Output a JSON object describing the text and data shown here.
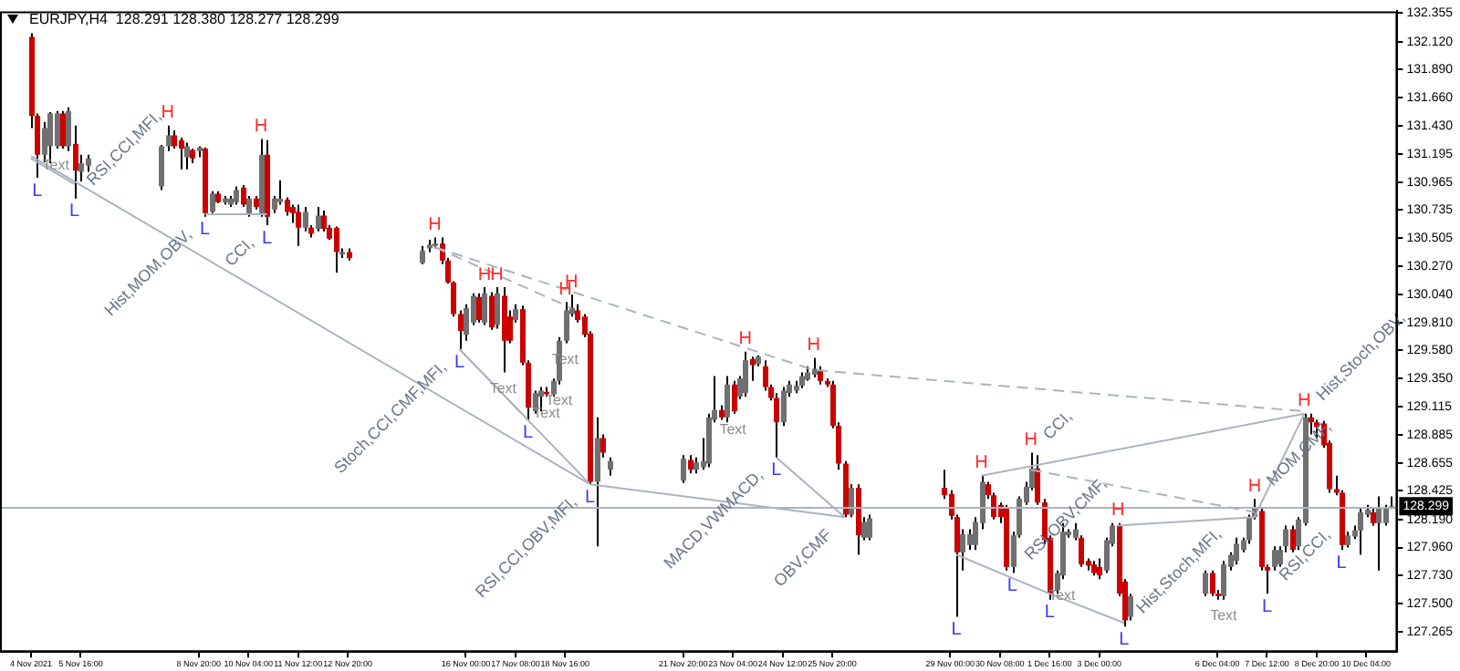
{
  "chart_data": {
    "type": "candlestick",
    "title": "EURJPY,H4  128.291 128.380 128.277 128.299",
    "x": [
      "2021-11-04T08:00",
      "2021-11-04T12:00",
      "2021-11-04T16:00",
      "2021-11-04T20:00",
      "2021-11-05T00:00",
      "2021-11-05T04:00",
      "2021-11-05T08:00",
      "2021-11-05T12:00",
      "2021-11-05T16:00",
      "2021-11-05T20:00",
      "2021-11-07T20:00",
      "2021-11-08T00:00",
      "2021-11-08T04:00",
      "2021-11-08T08:00",
      "2021-11-08T12:00",
      "2021-11-08T16:00",
      "2021-11-08T20:00",
      "2021-11-09T00:00",
      "2021-11-09T04:00",
      "2021-11-09T08:00",
      "2021-11-09T12:00",
      "2021-11-09T16:00",
      "2021-11-09T20:00",
      "2021-11-10T00:00",
      "2021-11-10T04:00",
      "2021-11-10T08:00",
      "2021-11-10T12:00",
      "2021-11-10T16:00",
      "2021-11-10T20:00",
      "2021-11-11T00:00",
      "2021-11-11T04:00",
      "2021-11-11T08:00",
      "2021-11-11T12:00",
      "2021-11-11T16:00",
      "2021-11-11T20:00",
      "2021-11-12T00:00",
      "2021-11-12T04:00",
      "2021-11-12T08:00",
      "2021-11-12T12:00",
      "2021-11-12T16:00",
      "2021-11-12T20:00",
      "2021-11-14T20:00",
      "2021-11-15T00:00",
      "2021-11-15T04:00",
      "2021-11-15T08:00",
      "2021-11-15T12:00",
      "2021-11-15T16:00",
      "2021-11-15T20:00",
      "2021-11-16T00:00",
      "2021-11-16T04:00",
      "2021-11-16T08:00",
      "2021-11-16T12:00",
      "2021-11-16T16:00",
      "2021-11-16T20:00",
      "2021-11-17T00:00",
      "2021-11-17T04:00",
      "2021-11-17T08:00",
      "2021-11-17T12:00",
      "2021-11-17T16:00",
      "2021-11-17T20:00",
      "2021-11-18T00:00",
      "2021-11-18T04:00",
      "2021-11-18T08:00",
      "2021-11-18T12:00",
      "2021-11-18T16:00",
      "2021-11-18T20:00",
      "2021-11-19T00:00",
      "2021-11-19T04:00",
      "2021-11-19T08:00",
      "2021-11-19T12:00",
      "2021-11-19T16:00",
      "2021-11-19T20:00",
      "2021-11-21T20:00",
      "2021-11-22T00:00",
      "2021-11-22T04:00",
      "2021-11-22T08:00",
      "2021-11-22T12:00",
      "2021-11-22T16:00",
      "2021-11-22T20:00",
      "2021-11-23T00:00",
      "2021-11-23T04:00",
      "2021-11-23T08:00",
      "2021-11-23T12:00",
      "2021-11-23T16:00",
      "2021-11-23T20:00",
      "2021-11-24T00:00",
      "2021-11-24T04:00",
      "2021-11-24T08:00",
      "2021-11-24T12:00",
      "2021-11-24T16:00",
      "2021-11-24T20:00",
      "2021-11-25T00:00",
      "2021-11-25T04:00",
      "2021-11-25T08:00",
      "2021-11-25T12:00",
      "2021-11-25T16:00",
      "2021-11-25T20:00",
      "2021-11-26T00:00",
      "2021-11-26T04:00",
      "2021-11-26T08:00",
      "2021-11-26T12:00",
      "2021-11-26T16:00",
      "2021-11-26T20:00",
      "2021-11-28T20:00",
      "2021-11-29T00:00",
      "2021-11-29T04:00",
      "2021-11-29T08:00",
      "2021-11-29T12:00",
      "2021-11-29T16:00",
      "2021-11-29T20:00",
      "2021-11-30T00:00",
      "2021-11-30T04:00",
      "2021-11-30T08:00",
      "2021-11-30T12:00",
      "2021-11-30T16:00",
      "2021-11-30T20:00",
      "2021-12-01T00:00",
      "2021-12-01T04:00",
      "2021-12-01T08:00",
      "2021-12-01T12:00",
      "2021-12-01T16:00",
      "2021-12-01T20:00",
      "2021-12-02T00:00",
      "2021-12-02T04:00",
      "2021-12-02T08:00",
      "2021-12-02T12:00",
      "2021-12-02T16:00",
      "2021-12-02T20:00",
      "2021-12-03T00:00",
      "2021-12-03T04:00",
      "2021-12-03T08:00",
      "2021-12-03T12:00",
      "2021-12-03T16:00",
      "2021-12-03T20:00",
      "2021-12-05T20:00",
      "2021-12-06T00:00",
      "2021-12-06T04:00",
      "2021-12-06T08:00",
      "2021-12-06T12:00",
      "2021-12-06T16:00",
      "2021-12-06T20:00",
      "2021-12-07T00:00",
      "2021-12-07T04:00",
      "2021-12-07T08:00",
      "2021-12-07T12:00",
      "2021-12-07T16:00",
      "2021-12-07T20:00",
      "2021-12-08T00:00",
      "2021-12-08T04:00",
      "2021-12-08T08:00",
      "2021-12-08T12:00",
      "2021-12-08T16:00",
      "2021-12-08T20:00",
      "2021-12-09T00:00",
      "2021-12-09T04:00",
      "2021-12-09T08:00",
      "2021-12-09T12:00",
      "2021-12-09T16:00",
      "2021-12-09T20:00",
      "2021-12-10T00:00",
      "2021-12-10T04:00",
      "2021-12-10T08:00",
      "2021-12-10T12:00",
      "2021-12-10T16:00",
      "2021-12-10T20:00"
    ],
    "ohlc": [
      [
        132.16,
        132.19,
        131.41,
        131.51
      ],
      [
        131.51,
        131.53,
        131.0,
        131.19
      ],
      [
        131.19,
        131.46,
        131.13,
        131.41
      ],
      [
        131.26,
        131.54,
        131.12,
        131.53
      ],
      [
        131.26,
        131.55,
        131.24,
        131.53
      ],
      [
        131.53,
        131.55,
        131.24,
        131.26
      ],
      [
        131.26,
        131.58,
        131.22,
        131.55
      ],
      [
        131.28,
        131.43,
        130.83,
        131.06
      ],
      [
        131.05,
        131.19,
        130.97,
        131.12
      ],
      [
        131.1,
        131.19,
        131.05,
        131.16
      ],
      [
        130.93,
        131.27,
        130.9,
        131.26
      ],
      [
        131.26,
        131.43,
        131.22,
        131.35
      ],
      [
        131.35,
        131.39,
        131.24,
        131.26
      ],
      [
        131.31,
        131.33,
        131.07,
        131.24
      ],
      [
        131.17,
        131.29,
        131.07,
        131.26
      ],
      [
        131.23,
        131.24,
        131.12,
        131.16
      ],
      [
        131.22,
        131.26,
        131.17,
        131.25
      ],
      [
        131.24,
        131.25,
        130.68,
        130.71
      ],
      [
        130.72,
        130.89,
        130.71,
        130.87
      ],
      [
        130.87,
        130.89,
        130.79,
        130.8
      ],
      [
        130.8,
        130.85,
        130.78,
        130.83
      ],
      [
        130.78,
        130.85,
        130.76,
        130.83
      ],
      [
        130.8,
        130.93,
        130.78,
        130.9
      ],
      [
        130.92,
        130.94,
        130.76,
        130.78
      ],
      [
        130.71,
        130.85,
        130.68,
        130.83
      ],
      [
        130.83,
        130.85,
        130.74,
        130.76
      ],
      [
        130.71,
        131.32,
        130.68,
        131.19
      ],
      [
        131.19,
        131.31,
        130.61,
        130.68
      ],
      [
        130.74,
        130.85,
        130.71,
        130.83
      ],
      [
        130.8,
        130.98,
        130.78,
        130.83
      ],
      [
        130.82,
        130.84,
        130.69,
        130.72
      ],
      [
        130.76,
        130.78,
        130.63,
        130.71
      ],
      [
        130.72,
        130.78,
        130.44,
        130.59
      ],
      [
        130.59,
        130.76,
        130.56,
        130.72
      ],
      [
        130.59,
        130.61,
        130.51,
        130.54
      ],
      [
        130.58,
        130.76,
        130.56,
        130.69
      ],
      [
        130.69,
        130.73,
        130.56,
        130.58
      ],
      [
        130.59,
        130.61,
        130.49,
        130.5
      ],
      [
        130.59,
        130.6,
        130.22,
        130.39
      ],
      [
        130.37,
        130.42,
        130.34,
        130.39
      ],
      [
        130.39,
        130.42,
        130.32,
        130.34
      ],
      [
        130.3,
        130.44,
        130.29,
        130.4
      ],
      [
        130.42,
        130.49,
        130.39,
        130.45
      ],
      [
        130.44,
        130.51,
        130.42,
        130.46
      ],
      [
        130.46,
        130.51,
        130.29,
        130.32
      ],
      [
        130.32,
        130.34,
        130.13,
        130.14
      ],
      [
        130.14,
        130.15,
        129.86,
        129.88
      ],
      [
        129.88,
        129.91,
        129.59,
        129.74
      ],
      [
        129.71,
        129.96,
        129.66,
        129.93
      ],
      [
        129.81,
        130.05,
        129.79,
        130.03
      ],
      [
        130.02,
        130.05,
        129.81,
        129.83
      ],
      [
        129.81,
        130.1,
        129.79,
        130.05
      ],
      [
        130.03,
        130.06,
        129.75,
        129.77
      ],
      [
        129.79,
        130.1,
        129.76,
        130.05
      ],
      [
        130.03,
        130.1,
        129.4,
        129.66
      ],
      [
        129.86,
        129.91,
        129.64,
        129.66
      ],
      [
        129.83,
        129.96,
        129.81,
        129.92
      ],
      [
        129.92,
        129.95,
        129.46,
        129.48
      ],
      [
        129.48,
        129.5,
        129.01,
        129.11
      ],
      [
        129.08,
        129.25,
        129.06,
        129.23
      ],
      [
        129.2,
        129.28,
        129.08,
        129.25
      ],
      [
        129.24,
        129.28,
        129.2,
        129.22
      ],
      [
        129.22,
        129.35,
        129.2,
        129.33
      ],
      [
        129.33,
        129.69,
        129.3,
        129.66
      ],
      [
        129.66,
        129.98,
        129.64,
        129.91
      ],
      [
        129.88,
        130.04,
        129.86,
        129.93
      ],
      [
        129.91,
        129.96,
        129.81,
        129.83
      ],
      [
        129.86,
        129.88,
        129.69,
        129.71
      ],
      [
        129.72,
        129.74,
        128.48,
        128.5
      ],
      [
        128.5,
        129.03,
        127.97,
        128.86
      ],
      [
        128.86,
        128.89,
        128.7,
        128.74
      ],
      [
        128.6,
        128.7,
        128.55,
        128.67
      ],
      [
        128.51,
        128.72,
        128.49,
        128.69
      ],
      [
        128.68,
        128.72,
        128.57,
        128.6
      ],
      [
        128.6,
        128.7,
        128.57,
        128.66
      ],
      [
        128.62,
        128.86,
        128.6,
        128.67
      ],
      [
        128.65,
        129.06,
        128.62,
        129.03
      ],
      [
        129.01,
        129.37,
        128.99,
        129.09
      ],
      [
        129.09,
        129.13,
        129.01,
        129.03
      ],
      [
        129.03,
        129.37,
        128.99,
        129.3
      ],
      [
        129.3,
        129.33,
        129.06,
        129.08
      ],
      [
        129.2,
        129.37,
        129.18,
        129.35
      ],
      [
        129.23,
        129.57,
        129.2,
        129.5
      ],
      [
        129.51,
        129.53,
        129.33,
        129.46
      ],
      [
        129.47,
        129.54,
        129.45,
        129.53
      ],
      [
        129.45,
        129.5,
        129.25,
        129.28
      ],
      [
        129.28,
        129.3,
        129.17,
        129.19
      ],
      [
        129.19,
        129.23,
        128.7,
        128.99
      ],
      [
        128.99,
        129.28,
        128.96,
        129.25
      ],
      [
        129.23,
        129.33,
        129.2,
        129.3
      ],
      [
        129.25,
        129.33,
        129.23,
        129.29
      ],
      [
        129.29,
        129.4,
        129.27,
        129.37
      ],
      [
        129.34,
        129.45,
        129.33,
        129.4
      ],
      [
        129.38,
        129.52,
        129.36,
        129.43
      ],
      [
        129.42,
        129.45,
        129.3,
        129.33
      ],
      [
        129.33,
        129.35,
        129.28,
        129.3
      ],
      [
        129.3,
        129.33,
        128.94,
        128.96
      ],
      [
        128.96,
        128.99,
        128.6,
        128.65
      ],
      [
        128.65,
        128.67,
        128.21,
        128.23
      ],
      [
        128.23,
        128.48,
        128.21,
        128.45
      ],
      [
        128.45,
        128.48,
        127.9,
        128.06
      ],
      [
        128.04,
        128.21,
        128.02,
        128.17
      ],
      [
        128.04,
        128.23,
        128.02,
        128.2
      ],
      [
        128.45,
        128.6,
        128.36,
        128.39
      ],
      [
        128.4,
        128.43,
        128.19,
        128.22
      ],
      [
        128.21,
        128.23,
        127.39,
        127.92
      ],
      [
        127.92,
        128.11,
        127.77,
        128.07
      ],
      [
        127.98,
        128.11,
        127.94,
        128.07
      ],
      [
        127.98,
        128.21,
        127.94,
        128.17
      ],
      [
        128.16,
        128.55,
        128.11,
        128.5
      ],
      [
        128.48,
        128.5,
        128.36,
        128.39
      ],
      [
        128.39,
        128.41,
        128.19,
        128.21
      ],
      [
        128.31,
        128.33,
        128.16,
        128.21
      ],
      [
        128.28,
        128.31,
        127.77,
        127.8
      ],
      [
        127.8,
        128.09,
        127.75,
        128.06
      ],
      [
        128.06,
        128.38,
        128.04,
        128.36
      ],
      [
        128.33,
        128.5,
        128.31,
        128.46
      ],
      [
        128.45,
        128.74,
        128.43,
        128.61
      ],
      [
        128.61,
        128.72,
        128.31,
        128.33
      ],
      [
        128.33,
        128.36,
        127.99,
        128.02
      ],
      [
        128.04,
        128.06,
        127.53,
        127.58
      ],
      [
        127.61,
        127.77,
        127.58,
        127.75
      ],
      [
        127.73,
        128.16,
        127.7,
        128.09
      ],
      [
        128.06,
        128.11,
        128.04,
        128.09
      ],
      [
        128.04,
        128.16,
        128.02,
        128.11
      ],
      [
        128.04,
        128.06,
        127.8,
        127.82
      ],
      [
        127.85,
        127.87,
        127.77,
        127.81
      ],
      [
        127.82,
        127.85,
        127.73,
        127.75
      ],
      [
        127.8,
        127.87,
        127.7,
        127.73
      ],
      [
        127.77,
        128.04,
        127.75,
        128.02
      ],
      [
        127.99,
        128.16,
        127.97,
        128.14
      ],
      [
        128.14,
        128.16,
        127.56,
        127.58
      ],
      [
        127.68,
        127.7,
        127.31,
        127.36
      ],
      [
        127.39,
        127.58,
        127.36,
        127.56
      ],
      [
        127.58,
        127.77,
        127.56,
        127.75
      ],
      [
        127.75,
        127.77,
        127.56,
        127.58
      ],
      [
        127.58,
        127.61,
        127.53,
        127.56
      ],
      [
        127.56,
        127.85,
        127.53,
        127.82
      ],
      [
        127.8,
        127.92,
        127.77,
        127.9
      ],
      [
        127.85,
        128.04,
        127.82,
        127.99
      ],
      [
        127.94,
        128.04,
        127.92,
        128.02
      ],
      [
        128.02,
        128.23,
        127.99,
        128.21
      ],
      [
        128.21,
        128.36,
        128.19,
        128.28
      ],
      [
        128.26,
        128.28,
        127.77,
        127.8
      ],
      [
        127.8,
        127.82,
        127.58,
        127.77
      ],
      [
        127.8,
        127.97,
        127.77,
        127.94
      ],
      [
        127.82,
        127.97,
        127.8,
        127.94
      ],
      [
        127.97,
        128.14,
        127.92,
        128.11
      ],
      [
        128.11,
        128.14,
        127.92,
        127.94
      ],
      [
        127.97,
        128.21,
        127.94,
        128.19
      ],
      [
        128.16,
        129.06,
        128.14,
        129.03
      ],
      [
        129.03,
        129.06,
        128.89,
        128.99
      ],
      [
        128.99,
        129.01,
        128.86,
        128.95
      ],
      [
        128.98,
        129.0,
        128.78,
        128.8
      ],
      [
        128.82,
        128.84,
        128.41,
        128.44
      ],
      [
        128.44,
        128.55,
        128.39,
        128.41
      ],
      [
        128.41,
        128.43,
        127.94,
        127.98
      ],
      [
        127.98,
        128.09,
        127.96,
        128.06
      ],
      [
        128.05,
        128.14,
        128.03,
        128.1
      ],
      [
        128.1,
        128.28,
        127.9,
        128.25
      ],
      [
        128.23,
        128.31,
        128.21,
        128.27
      ],
      [
        128.25,
        128.28,
        128.14,
        128.16
      ],
      [
        128.16,
        128.38,
        127.77,
        128.28
      ],
      [
        128.16,
        128.31,
        128.14,
        128.28
      ],
      [
        128.291,
        128.38,
        128.277,
        128.299
      ]
    ],
    "colors": [
      "#cc0000",
      "#cc0000",
      "#707070",
      "#707070",
      "#707070",
      "#cc0000",
      "#707070",
      "#cc0000",
      "#707070",
      "#707070",
      "#707070",
      "#707070",
      "#cc0000",
      "#cc0000",
      "#707070",
      "#cc0000",
      "#707070",
      "#cc0000",
      "#707070",
      "#cc0000",
      "#707070",
      "#707070",
      "#707070",
      "#cc0000",
      "#707070",
      "#cc0000",
      "#707070",
      "#cc0000",
      "#707070",
      "#707070",
      "#cc0000",
      "#cc0000",
      "#cc0000",
      "#707070",
      "#cc0000",
      "#707070",
      "#cc0000",
      "#cc0000",
      "#cc0000",
      "#707070",
      "#cc0000",
      "#707070",
      "#707070",
      "#707070",
      "#cc0000",
      "#cc0000",
      "#cc0000",
      "#cc0000",
      "#707070",
      "#707070",
      "#cc0000",
      "#707070",
      "#cc0000",
      "#707070",
      "#cc0000",
      "#cc0000",
      "#707070",
      "#cc0000",
      "#cc0000",
      "#707070",
      "#707070",
      "#cc0000",
      "#707070",
      "#707070",
      "#707070",
      "#707070",
      "#cc0000",
      "#cc0000",
      "#cc0000",
      "#707070",
      "#cc0000",
      "#707070",
      "#707070",
      "#cc0000",
      "#707070",
      "#707070",
      "#707070",
      "#707070",
      "#cc0000",
      "#707070",
      "#cc0000",
      "#707070",
      "#707070",
      "#cc0000",
      "#707070",
      "#cc0000",
      "#cc0000",
      "#cc0000",
      "#707070",
      "#707070",
      "#707070",
      "#707070",
      "#707070",
      "#707070",
      "#cc0000",
      "#cc0000",
      "#cc0000",
      "#cc0000",
      "#cc0000",
      "#707070",
      "#cc0000",
      "#707070",
      "#707070",
      "#cc0000",
      "#cc0000",
      "#cc0000",
      "#707070",
      "#707070",
      "#707070",
      "#707070",
      "#cc0000",
      "#cc0000",
      "#cc0000",
      "#cc0000",
      "#707070",
      "#707070",
      "#707070",
      "#707070",
      "#cc0000",
      "#cc0000",
      "#cc0000",
      "#707070",
      "#707070",
      "#707070",
      "#707070",
      "#cc0000",
      "#cc0000",
      "#cc0000",
      "#cc0000",
      "#707070",
      "#707070",
      "#cc0000",
      "#cc0000",
      "#707070",
      "#707070",
      "#cc0000",
      "#cc0000",
      "#707070",
      "#707070",
      "#707070",
      "#707070",
      "#707070",
      "#707070",
      "#cc0000",
      "#cc0000",
      "#707070",
      "#707070",
      "#707070",
      "#cc0000",
      "#707070",
      "#707070",
      "#cc0000",
      "#cc0000",
      "#cc0000",
      "#cc0000",
      "#cc0000",
      "#cc0000",
      "#707070",
      "#707070",
      "#707070",
      "#707070",
      "#cc0000",
      "#707070",
      "#707070",
      "#707070"
    ],
    "series": [
      {
        "type": "line",
        "color": "#aab3c2",
        "line_style": "solid",
        "x": [
          "2021-11-04T08:00",
          "2021-11-19T08:00",
          "2021-11-26T04:00"
        ],
        "values": [
          131.18,
          128.48,
          128.21
        ]
      },
      {
        "type": "line",
        "color": "#aab3c2",
        "line_style": "solid",
        "x": [
          "2021-11-04T08:00",
          "2021-11-05T12:00"
        ],
        "values": [
          131.16,
          130.95
        ]
      },
      {
        "type": "line",
        "color": "#aab3c2",
        "line_style": "solid",
        "x": [
          "2021-11-09T00:00",
          "2021-11-10T16:00"
        ],
        "values": [
          130.7,
          130.7
        ]
      },
      {
        "type": "line",
        "color": "#aab3c2",
        "line_style": "solid",
        "x": [
          "2021-11-15T20:00",
          "2021-11-19T08:00"
        ],
        "values": [
          129.59,
          128.48
        ]
      },
      {
        "type": "line",
        "color": "#aab3c2",
        "line_style": "solid",
        "x": [
          "2021-11-15T20:00",
          "2021-11-17T16:00"
        ],
        "values": [
          129.59,
          129.01
        ]
      },
      {
        "type": "line",
        "color": "#aab3c2",
        "line_style": "solid",
        "x": [
          "2021-11-24T08:00",
          "2021-11-26T04:00"
        ],
        "values": [
          128.7,
          128.21
        ]
      },
      {
        "type": "line",
        "color": "#aab3c2",
        "line_style": "solid",
        "x": [
          "2021-11-29T04:00",
          "2021-12-01T16:00",
          "2021-12-03T16:00"
        ],
        "values": [
          127.9,
          127.58,
          127.34
        ]
      },
      {
        "type": "line",
        "color": "#aab3c2",
        "line_style": "solid",
        "x": [
          "2021-11-29T20:00",
          "2021-12-08T12:00"
        ],
        "values": [
          128.55,
          129.06
        ]
      },
      {
        "type": "line",
        "color": "#aab3c2",
        "line_style": "solid",
        "x": [
          "2021-12-03T12:00",
          "2021-12-07T04:00",
          "2021-12-08T12:00"
        ],
        "values": [
          128.14,
          128.21,
          129.06
        ]
      },
      {
        "type": "line",
        "color": "#aab3c2",
        "line_style": "dashed",
        "x": [
          "2021-11-15T04:00",
          "2021-11-25T08:00",
          "2021-12-08T12:00"
        ],
        "values": [
          130.43,
          129.42,
          129.08
        ]
      },
      {
        "type": "line",
        "color": "#aab3c2",
        "line_style": "dashed",
        "x": [
          "2021-11-15T04:00",
          "2021-11-18T20:00"
        ],
        "values": [
          130.43,
          129.93
        ]
      },
      {
        "type": "line",
        "color": "#aab3c2",
        "line_style": "dashed",
        "x": [
          "2021-12-01T04:00",
          "2021-12-07T04:00"
        ],
        "values": [
          128.6,
          128.25
        ]
      }
    ],
    "xlim": [
      "2021-11-03T12:00",
      "2021-12-11T00:00"
    ],
    "ylim": [
      127.1,
      132.37
    ],
    "yticks": [
      {
        "value": 132.355,
        "label": "132.355"
      },
      {
        "value": 132.12,
        "label": "132.120"
      },
      {
        "value": 131.89,
        "label": "131.890"
      },
      {
        "value": 131.66,
        "label": "131.660"
      },
      {
        "value": 131.43,
        "label": "131.430"
      },
      {
        "value": 131.195,
        "label": "131.195"
      },
      {
        "value": 130.965,
        "label": "130.965"
      },
      {
        "value": 130.735,
        "label": "130.735"
      },
      {
        "value": 130.505,
        "label": "130.505"
      },
      {
        "value": 130.27,
        "label": "130.270"
      },
      {
        "value": 130.04,
        "label": "130.040"
      },
      {
        "value": 129.81,
        "label": "129.810"
      },
      {
        "value": 129.58,
        "label": "129.580"
      },
      {
        "value": 129.35,
        "label": "129.350"
      },
      {
        "value": 129.115,
        "label": "129.115"
      },
      {
        "value": 128.885,
        "label": "128.885"
      },
      {
        "value": 128.655,
        "label": "128.655"
      },
      {
        "value": 128.425,
        "label": "128.425"
      },
      {
        "value": 128.19,
        "label": "128.190"
      },
      {
        "value": 127.96,
        "label": "127.960"
      },
      {
        "value": 127.73,
        "label": "127.730"
      },
      {
        "value": 127.5,
        "label": "127.500"
      },
      {
        "value": 127.265,
        "label": "127.265"
      }
    ],
    "xticks": [
      {
        "value": "2021-11-04T08:00",
        "label": "4 Nov 2021"
      },
      {
        "value": "2021-11-05T16:00",
        "label": "5 Nov 16:00"
      },
      {
        "value": "2021-11-08T20:00",
        "label": "8 Nov 20:00"
      },
      {
        "value": "2021-11-10T04:00",
        "label": "10 Nov 04:00"
      },
      {
        "value": "2021-11-11T12:00",
        "label": "11 Nov 12:00"
      },
      {
        "value": "2021-11-12T20:00",
        "label": "12 Nov 20:00"
      },
      {
        "value": "2021-11-16T00:00",
        "label": "16 Nov 00:00"
      },
      {
        "value": "2021-11-17T08:00",
        "label": "17 Nov 08:00"
      },
      {
        "value": "2021-11-18T16:00",
        "label": "18 Nov 16:00"
      },
      {
        "value": "2021-11-21T20:00",
        "label": "21 Nov 20:00"
      },
      {
        "value": "2021-11-23T04:00",
        "label": "23 Nov 04:00"
      },
      {
        "value": "2021-11-24T12:00",
        "label": "24 Nov 12:00"
      },
      {
        "value": "2021-11-25T20:00",
        "label": "25 Nov 20:00"
      },
      {
        "value": "2021-11-29T00:00",
        "label": "29 Nov 00:00"
      },
      {
        "value": "2021-11-30T08:00",
        "label": "30 Nov 08:00"
      },
      {
        "value": "2021-12-01T16:00",
        "label": "1 Dec 16:00"
      },
      {
        "value": "2021-12-03T00:00",
        "label": "3 Dec 00:00"
      },
      {
        "value": "2021-12-06T04:00",
        "label": "6 Dec 04:00"
      },
      {
        "value": "2021-12-07T12:00",
        "label": "7 Dec 12:00"
      },
      {
        "value": "2021-12-08T20:00",
        "label": "8 Dec 20:00"
      },
      {
        "value": "2021-12-10T04:00",
        "label": "10 Dec 04:00"
      }
    ],
    "ref_lines": [
      {
        "axis": "y",
        "value": 128.299,
        "label": "128.299",
        "color": "#aab3c2"
      }
    ],
    "annotations": [
      {
        "text": "H",
        "x": "2021-11-08T00:00",
        "y": 131.43
      },
      {
        "text": "H",
        "x": "2021-11-10T12:00",
        "y": 131.32
      },
      {
        "text": "H",
        "x": "2021-11-15T04:00",
        "y": 130.51
      },
      {
        "text": "H",
        "x": "2021-11-16T12:00",
        "y": 130.1
      },
      {
        "text": "H",
        "x": "2021-11-16T20:00",
        "y": 130.1
      },
      {
        "text": "H",
        "x": "2021-11-18T16:00",
        "y": 129.98
      },
      {
        "text": "H",
        "x": "2021-11-18T20:00",
        "y": 130.04
      },
      {
        "text": "H",
        "x": "2021-11-23T12:00",
        "y": 129.57
      },
      {
        "text": "H",
        "x": "2021-11-25T08:00",
        "y": 129.52
      },
      {
        "text": "H",
        "x": "2021-11-29T20:00",
        "y": 128.55
      },
      {
        "text": "H",
        "x": "2021-12-01T04:00",
        "y": 128.74
      },
      {
        "text": "H",
        "x": "2021-12-03T12:00",
        "y": 128.16
      },
      {
        "text": "H",
        "x": "2021-12-07T04:00",
        "y": 128.36
      },
      {
        "text": "H",
        "x": "2021-12-08T12:00",
        "y": 129.06
      },
      {
        "text": "L",
        "x": "2021-11-04T12:00",
        "y": 131.0
      },
      {
        "text": "L",
        "x": "2021-11-05T12:00",
        "y": 130.83
      },
      {
        "text": "L",
        "x": "2021-11-09T00:00",
        "y": 130.68
      },
      {
        "text": "L",
        "x": "2021-11-10T16:00",
        "y": 130.61
      },
      {
        "text": "L",
        "x": "2021-11-15T20:00",
        "y": 129.59
      },
      {
        "text": "L",
        "x": "2021-11-17T16:00",
        "y": 129.01
      },
      {
        "text": "L",
        "x": "2021-11-19T08:00",
        "y": 128.48
      },
      {
        "text": "L",
        "x": "2021-11-24T08:00",
        "y": 128.7
      },
      {
        "text": "L",
        "x": "2021-11-29T04:00",
        "y": 127.39
      },
      {
        "text": "L",
        "x": "2021-11-30T16:00",
        "y": 127.75
      },
      {
        "text": "L",
        "x": "2021-12-01T16:00",
        "y": 127.53
      },
      {
        "text": "L",
        "x": "2021-12-03T16:00",
        "y": 127.31
      },
      {
        "text": "L",
        "x": "2021-12-07T12:00",
        "y": 127.58
      },
      {
        "text": "L",
        "x": "2021-12-09T12:00",
        "y": 127.94
      },
      {
        "text": "Text",
        "x": "2021-11-05T00:00",
        "y": 131.24
      },
      {
        "text": "Text",
        "x": "2021-11-17T00:00",
        "y": 129.4
      },
      {
        "text": "Text",
        "x": "2021-11-18T04:00",
        "y": 129.2
      },
      {
        "text": "Text",
        "x": "2021-11-18T12:00",
        "y": 129.3
      },
      {
        "text": "Text",
        "x": "2021-11-18T16:00",
        "y": 129.64
      },
      {
        "text": "Text",
        "x": "2021-11-23T04:00",
        "y": 129.06
      },
      {
        "text": "Text",
        "x": "2021-12-02T00:00",
        "y": 127.7
      },
      {
        "text": "Text",
        "x": "2021-12-06T08:00",
        "y": 127.53
      },
      {
        "text": "RSI,CCI,MFI,",
        "x": "2021-11-05T12:00",
        "y": 130.83
      },
      {
        "text": "Hist,MOM,OBV,",
        "x": "2021-11-09T00:00",
        "y": 130.68
      },
      {
        "text": "CCI,",
        "x": "2021-11-10T16:00",
        "y": 130.61
      },
      {
        "text": "Stoch,CCI,CMF,MFI,",
        "x": "2021-11-15T20:00",
        "y": 129.59
      },
      {
        "text": "RSI,CCI,OBV,MFI,",
        "x": "2021-11-19T08:00",
        "y": 128.48
      },
      {
        "text": "MACD,VWMACD,",
        "x": "2021-11-24T08:00",
        "y": 128.7
      },
      {
        "text": "OBV,CMF",
        "x": "2021-11-26T04:00",
        "y": 128.21
      },
      {
        "text": "RSI,OBV,CMF,",
        "x": "2021-11-30T16:00",
        "y": 127.75
      },
      {
        "text": "CCI,",
        "x": "2021-12-01T04:00",
        "y": 128.74
      },
      {
        "text": "Hist,Stoch,MFI,",
        "x": "2021-12-03T16:00",
        "y": 127.31
      },
      {
        "text": "MOM,CMF,",
        "x": "2021-12-07T04:00",
        "y": 128.36
      },
      {
        "text": "RSI,CCI,",
        "x": "2021-12-07T12:00",
        "y": 127.58
      },
      {
        "text": "Hist,Stoch,OBV,",
        "x": "2021-12-08T12:00",
        "y": 129.06
      }
    ]
  }
}
